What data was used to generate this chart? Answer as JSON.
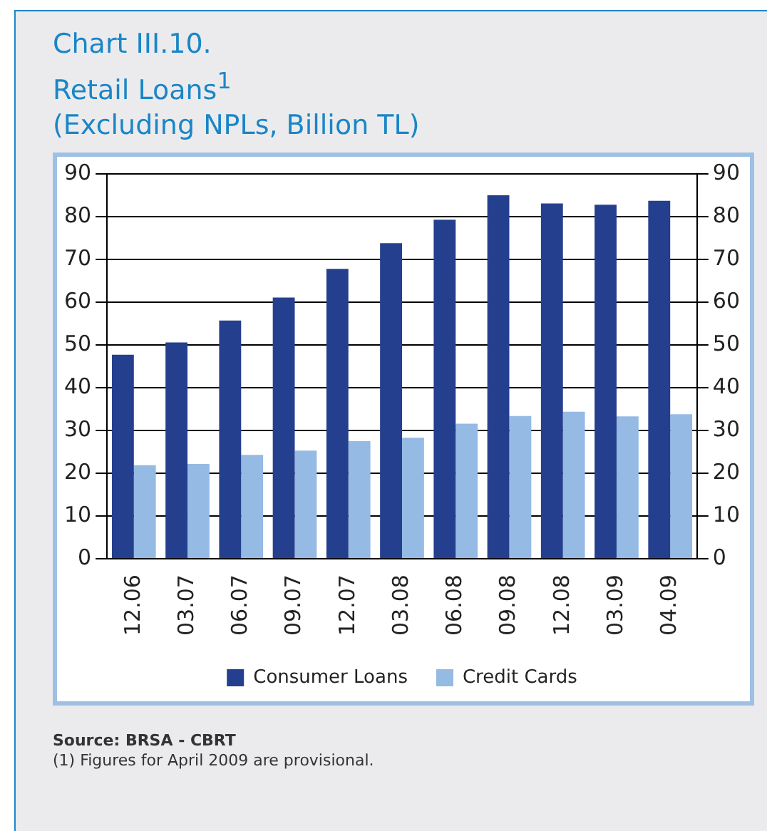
{
  "chart_data": {
    "type": "bar",
    "title": "Chart III.10.\nRetail Loans$^{1}$\n(Excluding NPLs, Billion TL)",
    "categories": [
      "12.06",
      "03.07",
      "06.07",
      "09.07",
      "12.07",
      "03.08",
      "06.08",
      "09.08",
      "12.08",
      "03.09",
      "04.09"
    ],
    "series": [
      {
        "name": "Consumer Loans",
        "color": "#253f8f",
        "values": [
          47.7,
          50.6,
          55.7,
          61.1,
          67.8,
          73.8,
          79.3,
          85.0,
          83.1,
          82.8,
          83.7
        ]
      },
      {
        "name": "Credit Cards",
        "color": "#95bae3",
        "values": [
          21.9,
          22.2,
          24.3,
          25.3,
          27.5,
          28.3,
          31.6,
          33.4,
          34.4,
          33.3,
          33.8
        ]
      }
    ],
    "ylim": [
      0,
      90
    ],
    "yticks": [
      0,
      10,
      20,
      30,
      40,
      50,
      60,
      70,
      80,
      90
    ],
    "y2lim": [
      0,
      90
    ],
    "y2ticks": [
      0,
      10,
      20,
      30,
      40,
      50,
      60,
      70,
      80,
      90
    ],
    "grid": "y",
    "legend": "bottom",
    "annotations": [
      "Source: BRSA - CBRT",
      "(1) Figures for April 2009 are provisional."
    ]
  }
}
